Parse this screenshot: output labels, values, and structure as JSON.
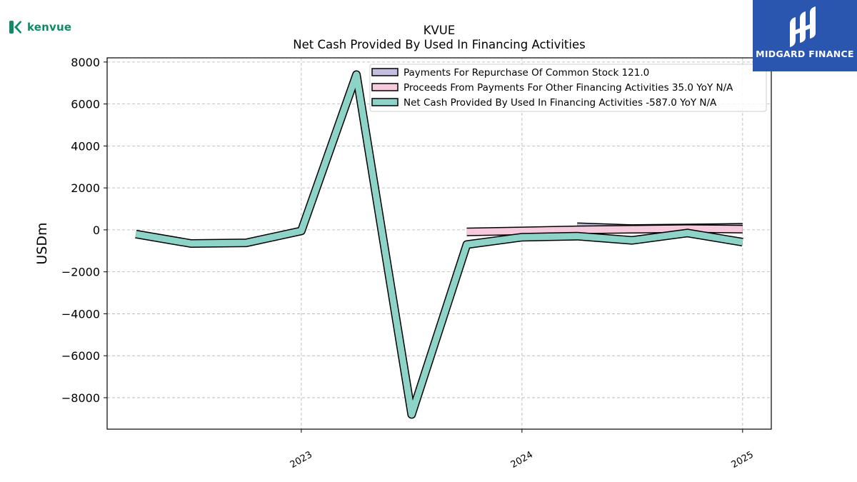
{
  "branding": {
    "company_logo_text": "kenvue",
    "publisher_name": "MIDGARD FINANCE",
    "company_accent": "#0f8a67",
    "publisher_bg": "#2a56b0"
  },
  "chart_data": {
    "type": "line",
    "title": "KVUE",
    "subtitle": "Net Cash Provided By Used In Financing Activities",
    "xlabel": "",
    "ylabel": "USDm",
    "ylim": [
      -9500,
      8200
    ],
    "xlim": [
      2022.12,
      2025.13
    ],
    "yticks": [
      8000,
      6000,
      4000,
      2000,
      0,
      -2000,
      -4000,
      -6000,
      -8000
    ],
    "ytick_labels": [
      "8000",
      "6000",
      "4000",
      "2000",
      "0",
      "−2000",
      "−4000",
      "−6000",
      "−8000"
    ],
    "xticks": [
      2023,
      2024,
      2025
    ],
    "xtick_labels": [
      "2023",
      "2024",
      "2025"
    ],
    "grid": true,
    "legend_position": "top-right",
    "series": [
      {
        "name": "Payments For Repurchase Of Common Stock",
        "legend_label": "Payments For Repurchase Of Common Stock  121.0",
        "color": "#c4bde0",
        "x": [
          2024.25,
          2024.5,
          2024.75,
          2025.0
        ],
        "y": [
          150,
          60,
          90,
          121
        ]
      },
      {
        "name": "Proceeds From Payments For Other Financing Activities",
        "legend_label": "Proceeds From Payments For Other Financing Activities  35.0 YoY N/A",
        "color": "#f7c9dc",
        "x": [
          2023.75,
          2024.0,
          2024.25,
          2024.5,
          2024.75,
          2025.0
        ],
        "y": [
          -100,
          -50,
          0,
          30,
          60,
          35
        ]
      },
      {
        "name": "Net Cash Provided By Used In Financing Activities",
        "legend_label": "Net Cash Provided By Used In Financing Activities  -587.0 YoY N/A",
        "color": "#8dd3c7",
        "x": [
          2022.25,
          2022.5,
          2022.75,
          2023.0,
          2023.25,
          2023.5,
          2023.75,
          2024.0,
          2024.25,
          2024.5,
          2024.75,
          2025.0
        ],
        "y": [
          -200,
          -650,
          -620,
          -50,
          7400,
          -8800,
          -700,
          -350,
          -300,
          -500,
          -150,
          -587
        ]
      }
    ]
  }
}
